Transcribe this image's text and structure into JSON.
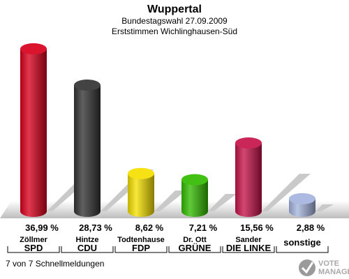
{
  "header": {
    "title": "Wuppertal",
    "subtitle1": "Bundestagswahl 27.09.2009",
    "subtitle2": "Erststimmen Wichlinghausen-Süd"
  },
  "chart_data": {
    "type": "bar",
    "title": "Wuppertal",
    "subtitle": [
      "Bundestagswahl 27.09.2009",
      "Erststimmen Wichlinghausen-Süd"
    ],
    "categories": [
      "SPD",
      "CDU",
      "FDP",
      "GRÜNE",
      "DIE LINKE",
      "sonstige"
    ],
    "candidates": [
      "Zöllmer",
      "Hintze",
      "Todtenhause",
      "Dr. Ott",
      "Sander",
      ""
    ],
    "values": [
      36.99,
      28.73,
      8.62,
      7.21,
      15.56,
      2.88
    ],
    "value_labels": [
      "36,99 %",
      "28,73 %",
      "8,62 %",
      "7,21 %",
      "15,56 %",
      "2,88 %"
    ],
    "colors": [
      "#d8001c",
      "#333333",
      "#f5e000",
      "#33bb00",
      "#c5134a",
      "#a5b4de"
    ],
    "unit": "%"
  },
  "footer": {
    "status": "7 von 7 Schnellmeldungen"
  },
  "logo": {
    "line1": "VOTE",
    "line2": "MANAGER",
    "icon": "checkmark-icon"
  }
}
